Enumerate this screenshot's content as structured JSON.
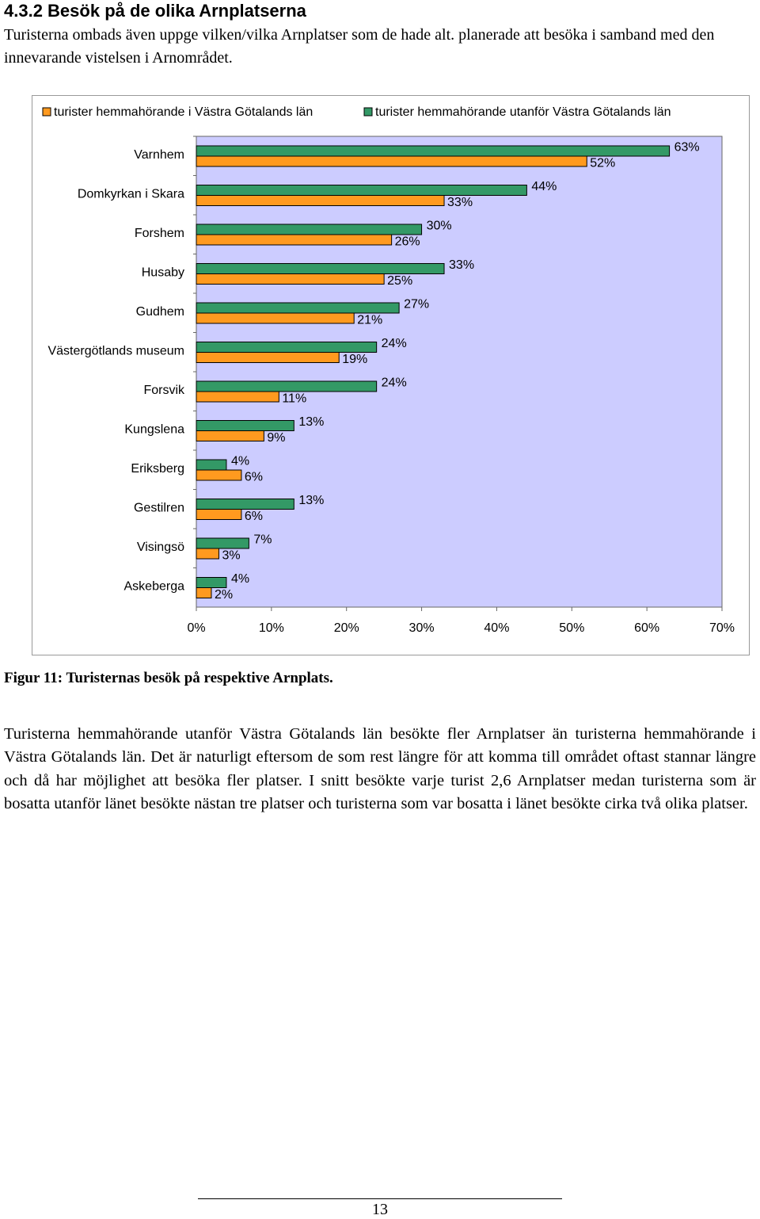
{
  "heading": "4.3.2 Besök på de olika Arnplatserna",
  "intro": "Turisterna ombads även uppge vilken/vilka Arnplatser som de hade alt. planerade att besöka i samband med den innevarande vistelsen i Arnområdet.",
  "chart_data": {
    "type": "bar",
    "orientation": "horizontal",
    "categories": [
      "Varnhem",
      "Domkyrkan i Skara",
      "Forshem",
      "Husaby",
      "Gudhem",
      "Västergötlands museum",
      "Forsvik",
      "Kungslena",
      "Eriksberg",
      "Gestilren",
      "Visingsö",
      "Askeberga"
    ],
    "series": [
      {
        "name": "turister hemmahörande i Västra Götalands län",
        "color": "#ff9a1f",
        "values": [
          52,
          33,
          26,
          25,
          21,
          19,
          11,
          9,
          6,
          6,
          3,
          2
        ],
        "value_labels": [
          "52%",
          "33%",
          "26%",
          "25%",
          "21%",
          "19%",
          "11%",
          "9%",
          "6%",
          "6%",
          "3%",
          "2%"
        ]
      },
      {
        "name": "turister hemmahörande utanför Västra Götalands län",
        "color": "#339966",
        "values": [
          63,
          44,
          30,
          33,
          27,
          24,
          24,
          13,
          4,
          13,
          7,
          4
        ],
        "value_labels": [
          "63%",
          "44%",
          "30%",
          "33%",
          "27%",
          "24%",
          "24%",
          "13%",
          "4%",
          "13%",
          "7%",
          "4%"
        ]
      }
    ],
    "xlim": [
      0,
      70
    ],
    "xticks": [
      {
        "value": 0,
        "label": "0%"
      },
      {
        "value": 10,
        "label": "10%"
      },
      {
        "value": 20,
        "label": "20%"
      },
      {
        "value": 30,
        "label": "30%"
      },
      {
        "value": 40,
        "label": "40%"
      },
      {
        "value": 50,
        "label": "50%"
      },
      {
        "value": 60,
        "label": "60%"
      },
      {
        "value": 70,
        "label": "70%"
      }
    ],
    "plot_background": "#ccccff",
    "legend": "top"
  },
  "caption": "Figur 11: Turisternas besök på respektive Arnplats.",
  "body": "Turisterna hemmahörande utanför Västra Götalands län besökte fler Arnplatser än turisterna hemmahörande i Västra Götalands län. Det är naturligt eftersom de som rest längre för att komma till området oftast stannar längre och då har möjlighet att besöka fler platser. I snitt besökte varje turist 2,6 Arnplatser medan turisterna som är bosatta utanför länet besökte nästan tre platser och turisterna som var bosatta i länet besökte cirka två olika platser.",
  "page_number": "13"
}
